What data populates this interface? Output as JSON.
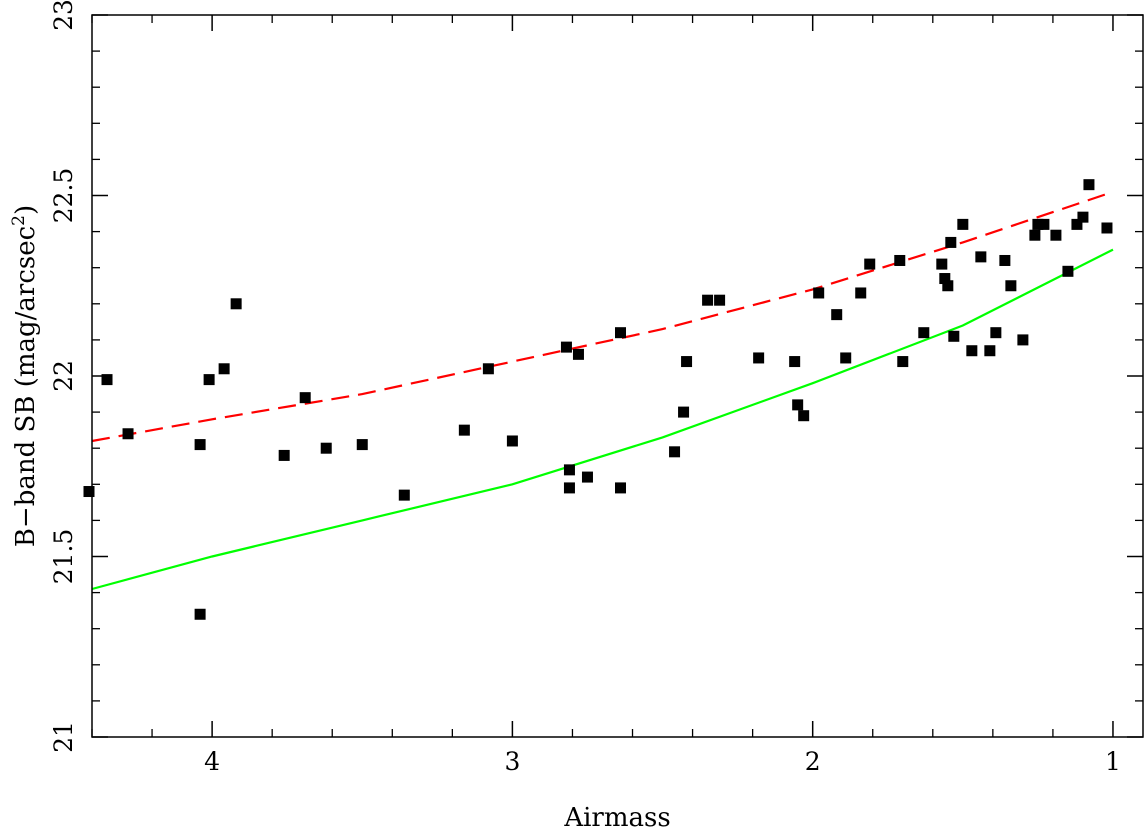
{
  "chart_data": {
    "type": "scatter",
    "xlabel": "Airmass",
    "ylabel_prefix": "B−band SB (mag/arcsec",
    "ylabel_sup": "2",
    "ylabel_suffix": ")",
    "xlim": [
      4.4,
      0.9
    ],
    "ylim": [
      21.0,
      23.0
    ],
    "x_ticks": [
      4,
      3,
      2,
      1
    ],
    "x_tick_labels": [
      "4",
      "3",
      "2",
      "1"
    ],
    "y_ticks": [
      21,
      21.5,
      22,
      22.5,
      23
    ],
    "y_tick_labels": [
      "21",
      "21.5",
      "22",
      "22.5",
      "23"
    ],
    "grid": false,
    "series": [
      {
        "type": "scatter",
        "color": "#000000",
        "marker": "square",
        "points": [
          {
            "x": 4.41,
            "y": 21.68
          },
          {
            "x": 4.35,
            "y": 21.99
          },
          {
            "x": 4.28,
            "y": 21.84
          },
          {
            "x": 4.04,
            "y": 21.81
          },
          {
            "x": 4.01,
            "y": 21.99
          },
          {
            "x": 3.96,
            "y": 22.02
          },
          {
            "x": 3.92,
            "y": 22.2
          },
          {
            "x": 4.04,
            "y": 21.34
          },
          {
            "x": 3.76,
            "y": 21.78
          },
          {
            "x": 3.69,
            "y": 21.94
          },
          {
            "x": 3.62,
            "y": 21.8
          },
          {
            "x": 3.5,
            "y": 21.81
          },
          {
            "x": 3.36,
            "y": 21.67
          },
          {
            "x": 3.16,
            "y": 21.85
          },
          {
            "x": 3.08,
            "y": 22.02
          },
          {
            "x": 3.0,
            "y": 21.82
          },
          {
            "x": 2.82,
            "y": 22.08
          },
          {
            "x": 2.78,
            "y": 22.06
          },
          {
            "x": 2.81,
            "y": 21.74
          },
          {
            "x": 2.81,
            "y": 21.69
          },
          {
            "x": 2.75,
            "y": 21.72
          },
          {
            "x": 2.64,
            "y": 21.69
          },
          {
            "x": 2.64,
            "y": 22.12
          },
          {
            "x": 2.46,
            "y": 21.79
          },
          {
            "x": 2.43,
            "y": 21.9
          },
          {
            "x": 2.42,
            "y": 22.04
          },
          {
            "x": 2.35,
            "y": 22.21
          },
          {
            "x": 2.31,
            "y": 22.21
          },
          {
            "x": 2.18,
            "y": 22.05
          },
          {
            "x": 2.06,
            "y": 22.04
          },
          {
            "x": 2.05,
            "y": 21.92
          },
          {
            "x": 2.03,
            "y": 21.89
          },
          {
            "x": 1.98,
            "y": 22.23
          },
          {
            "x": 1.92,
            "y": 22.17
          },
          {
            "x": 1.89,
            "y": 22.05
          },
          {
            "x": 1.84,
            "y": 22.23
          },
          {
            "x": 1.81,
            "y": 22.31
          },
          {
            "x": 1.71,
            "y": 22.32
          },
          {
            "x": 1.7,
            "y": 22.04
          },
          {
            "x": 1.63,
            "y": 22.12
          },
          {
            "x": 1.57,
            "y": 22.31
          },
          {
            "x": 1.56,
            "y": 22.27
          },
          {
            "x": 1.55,
            "y": 22.25
          },
          {
            "x": 1.54,
            "y": 22.37
          },
          {
            "x": 1.53,
            "y": 22.11
          },
          {
            "x": 1.5,
            "y": 22.42
          },
          {
            "x": 1.47,
            "y": 22.07
          },
          {
            "x": 1.44,
            "y": 22.33
          },
          {
            "x": 1.41,
            "y": 22.07
          },
          {
            "x": 1.39,
            "y": 22.12
          },
          {
            "x": 1.36,
            "y": 22.32
          },
          {
            "x": 1.34,
            "y": 22.25
          },
          {
            "x": 1.3,
            "y": 22.1
          },
          {
            "x": 1.26,
            "y": 22.39
          },
          {
            "x": 1.25,
            "y": 22.42
          },
          {
            "x": 1.23,
            "y": 22.42
          },
          {
            "x": 1.19,
            "y": 22.39
          },
          {
            "x": 1.15,
            "y": 22.29
          },
          {
            "x": 1.12,
            "y": 22.42
          },
          {
            "x": 1.1,
            "y": 22.44
          },
          {
            "x": 1.08,
            "y": 22.53
          },
          {
            "x": 1.02,
            "y": 22.41
          }
        ]
      },
      {
        "type": "line",
        "color": "#ff0000",
        "style": "dashed",
        "x": [
          4.4,
          4.0,
          3.5,
          3.0,
          2.5,
          2.0,
          1.5,
          1.0
        ],
        "y": [
          21.82,
          21.88,
          21.95,
          22.04,
          22.13,
          22.24,
          22.37,
          22.51
        ]
      },
      {
        "type": "line",
        "color": "#00ff00",
        "style": "solid",
        "x": [
          4.4,
          4.0,
          3.5,
          3.0,
          2.5,
          2.0,
          1.5,
          1.0
        ],
        "y": [
          21.41,
          21.5,
          21.6,
          21.7,
          21.83,
          21.98,
          22.14,
          22.35
        ]
      }
    ]
  }
}
